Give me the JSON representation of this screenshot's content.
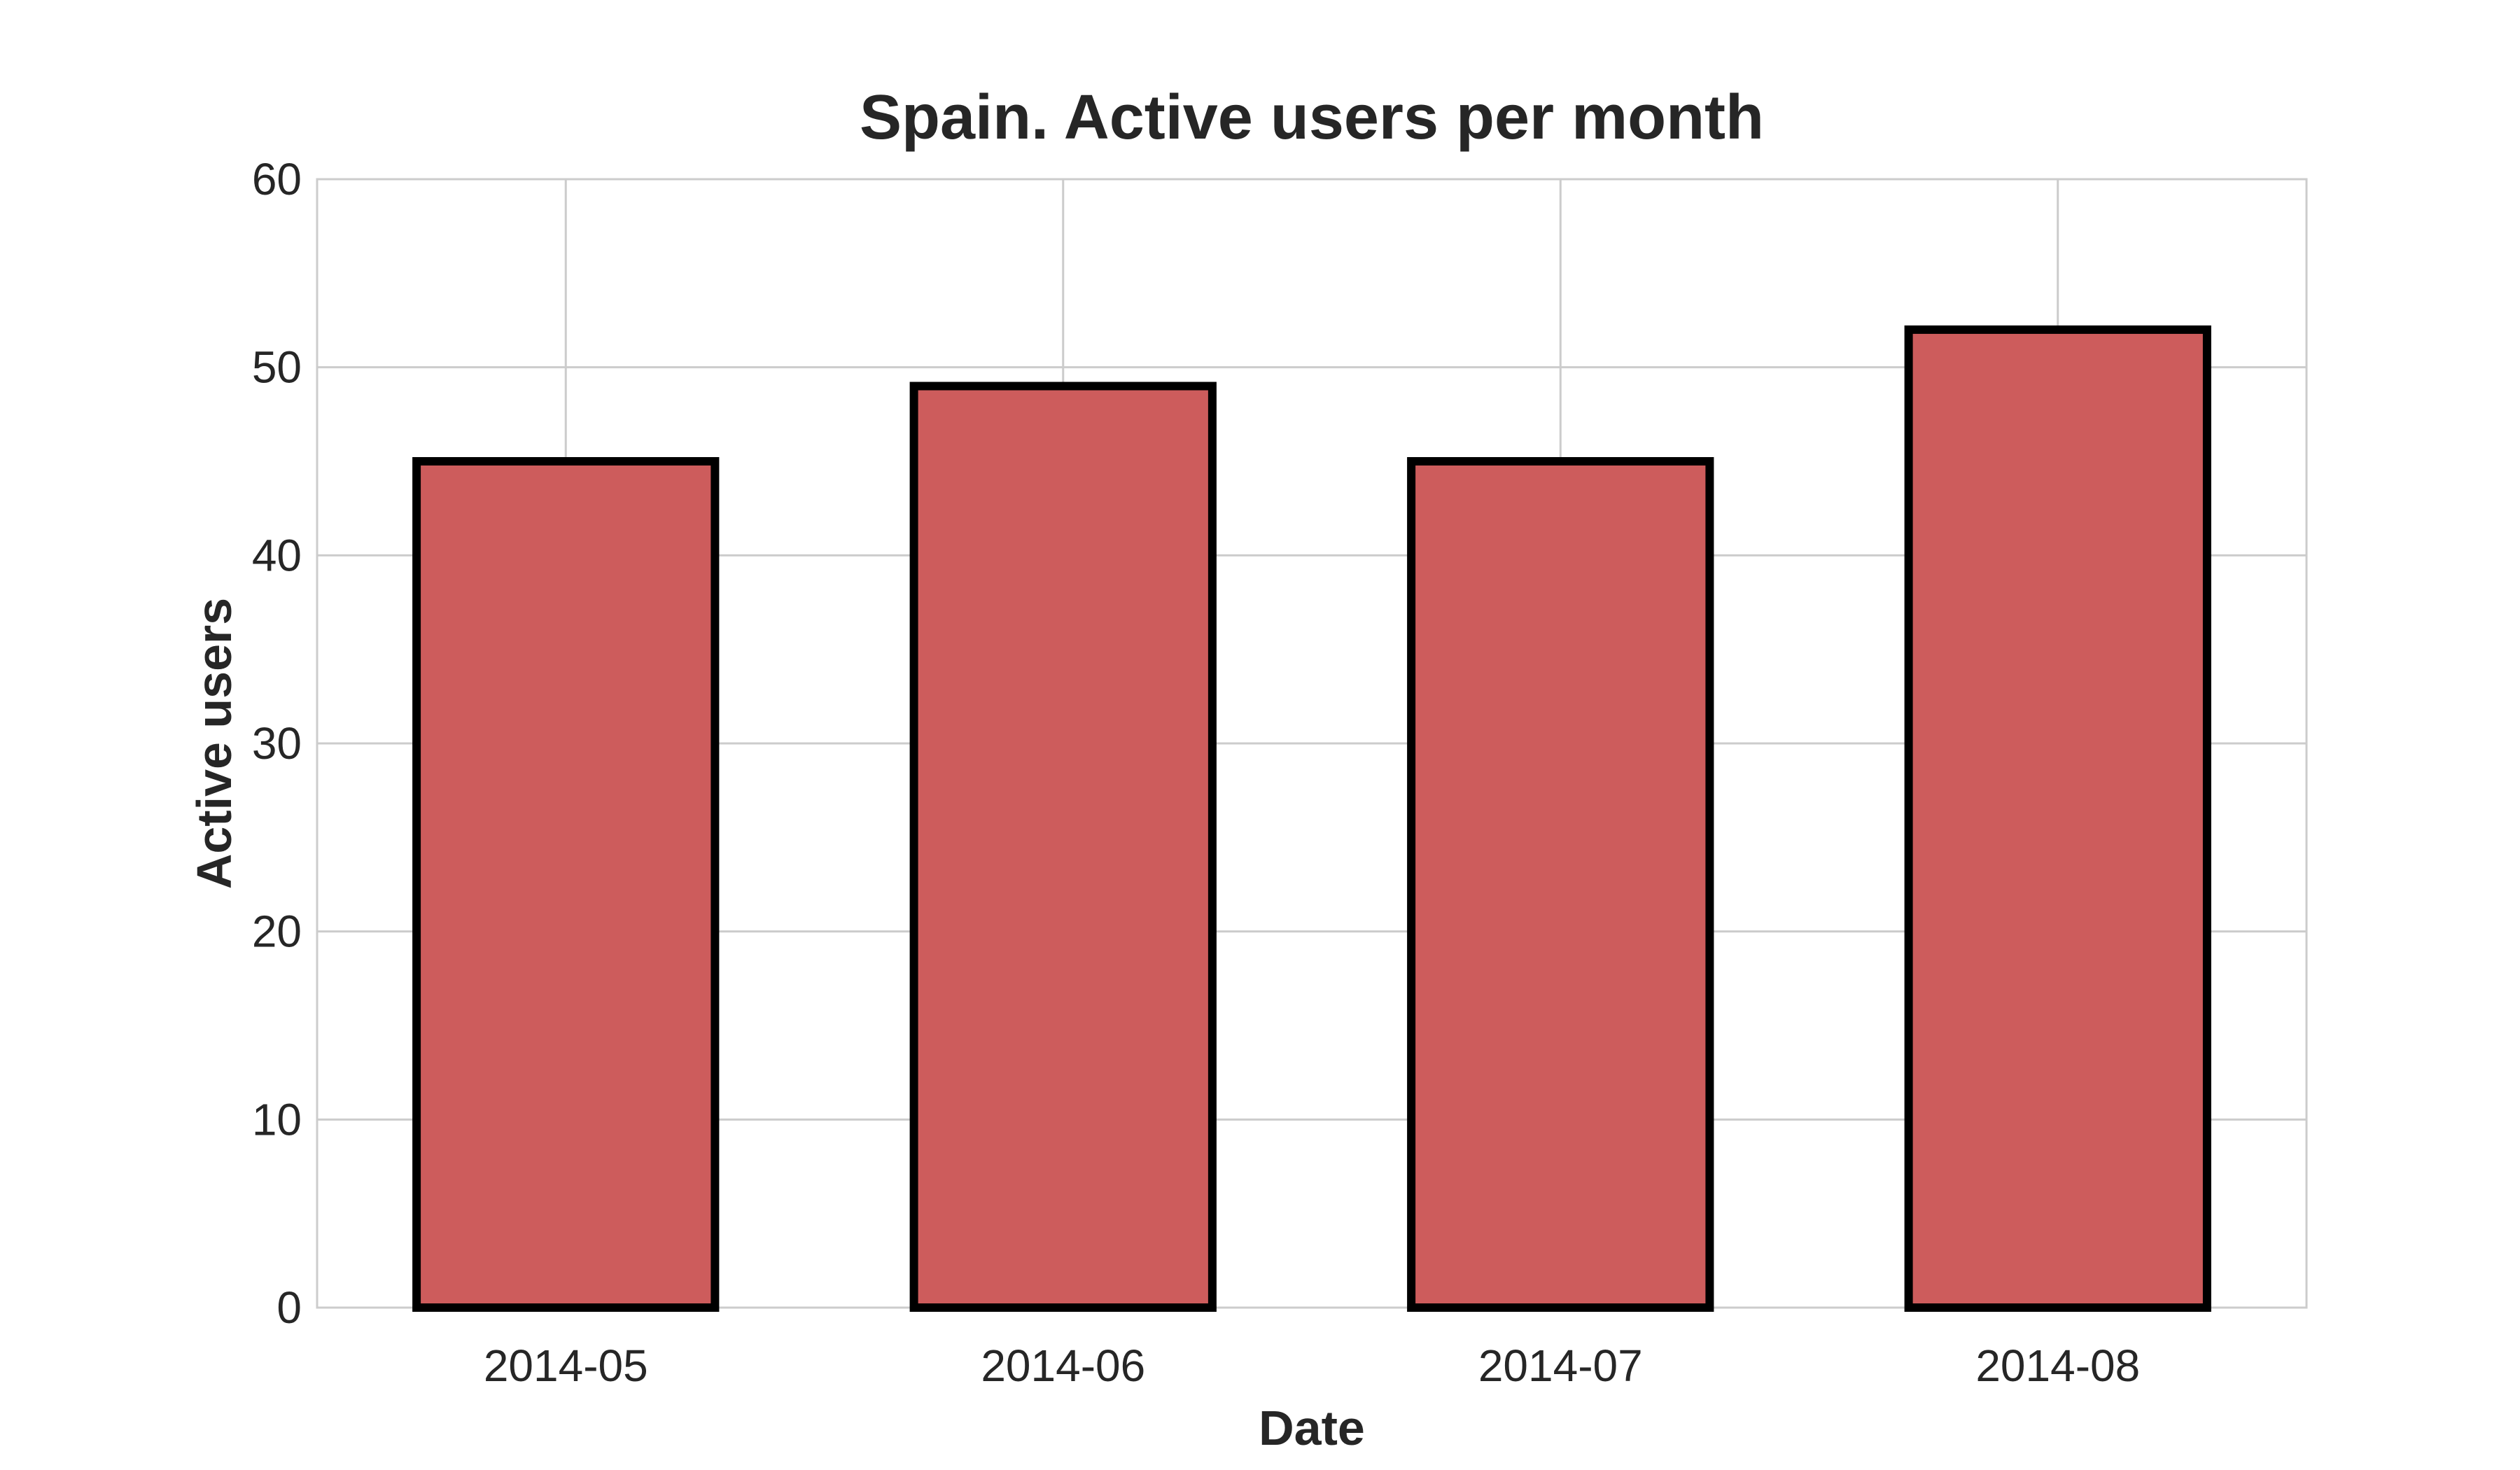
{
  "chart_data": {
    "type": "bar",
    "title": "Spain. Active users per month",
    "xlabel": "Date",
    "ylabel": "Active users",
    "categories": [
      "2014-05",
      "2014-06",
      "2014-07",
      "2014-08"
    ],
    "values": [
      45,
      49,
      45,
      52
    ],
    "ylim": [
      0,
      60
    ],
    "yticks": [
      0,
      10,
      20,
      30,
      40,
      50,
      60
    ],
    "grid": true,
    "legend": "none",
    "colors": {
      "bar_fill": "#cd5c5c",
      "bar_edge": "#000000",
      "grid": "#cccccc",
      "text": "#262626"
    }
  }
}
